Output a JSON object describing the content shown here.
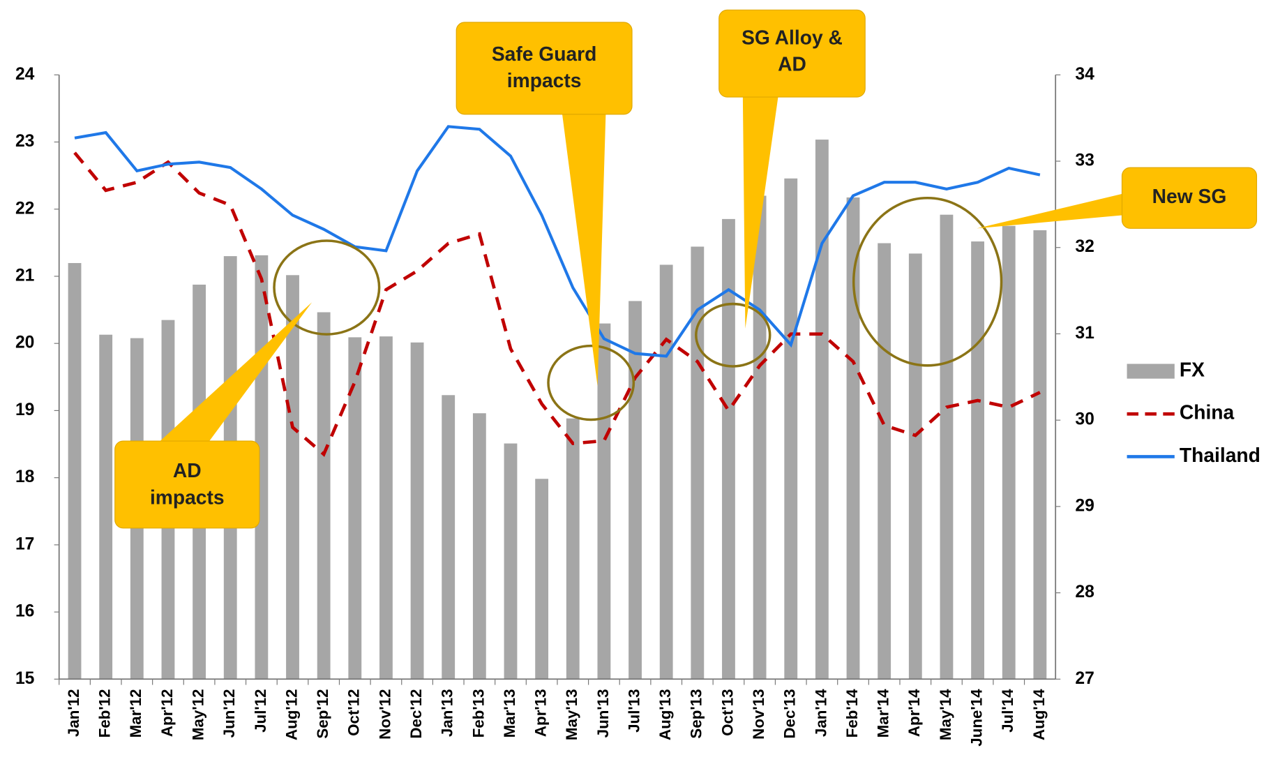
{
  "chart_data": {
    "type": "bar-line",
    "categories": [
      "Jan'12",
      "Feb'12",
      "Mar'12",
      "Apr'12",
      "May'12",
      "Jun'12",
      "Jul'12",
      "Aug'12",
      "Sep'12",
      "Oct'12",
      "Nov'12",
      "Dec'12",
      "Jan'13",
      "Feb'13",
      "Mar'13",
      "Apr'13",
      "May'13",
      "Jun'13",
      "Jul'13",
      "Aug'13",
      "Sep'13",
      "Oct'13",
      "Nov'13",
      "Dec'13",
      "Jan'14",
      "Feb'14",
      "Mar'14",
      "Apr'14",
      "May'14",
      "June'14",
      "Jul'14",
      "Aug'14"
    ],
    "series": [
      {
        "name": "FX",
        "type": "bar",
        "axis": "y2",
        "color": "#a6a6a6",
        "values": [
          31.82,
          30.99,
          30.95,
          31.16,
          31.57,
          31.9,
          31.91,
          31.68,
          31.25,
          30.96,
          30.97,
          30.9,
          30.29,
          30.08,
          29.73,
          29.32,
          30.02,
          31.12,
          31.38,
          31.8,
          32.01,
          32.33,
          32.6,
          32.8,
          33.25,
          32.58,
          32.05,
          31.93,
          32.38,
          32.07,
          32.25,
          32.2
        ]
      },
      {
        "name": "China",
        "type": "line",
        "dash": true,
        "color": "#c00000",
        "values": [
          22.84,
          22.28,
          22.4,
          22.7,
          22.24,
          22.06,
          20.96,
          18.75,
          18.35,
          19.43,
          20.8,
          21.08,
          21.49,
          21.63,
          19.92,
          19.1,
          18.51,
          18.55,
          19.49,
          20.06,
          19.73,
          19.0,
          19.67,
          20.14,
          20.14,
          19.73,
          18.78,
          18.63,
          19.05,
          19.15,
          19.05,
          19.27
        ]
      },
      {
        "name": "Thailand",
        "type": "line",
        "color": "#1f78e8",
        "values": [
          23.06,
          23.14,
          22.57,
          22.67,
          22.7,
          22.62,
          22.3,
          21.91,
          21.7,
          21.44,
          21.38,
          22.57,
          23.23,
          23.19,
          22.79,
          21.91,
          20.83,
          20.07,
          19.85,
          19.81,
          20.5,
          20.8,
          20.5,
          19.98,
          21.49,
          22.2,
          22.4,
          22.4,
          22.3,
          22.4,
          22.61,
          22.51
        ]
      }
    ],
    "ylim": [
      15,
      24
    ],
    "yticks": [
      15,
      16,
      17,
      18,
      19,
      20,
      21,
      22,
      23,
      24
    ],
    "y2lim": [
      27,
      34
    ],
    "y2ticks": [
      27,
      28,
      29,
      30,
      31,
      32,
      33,
      34
    ],
    "legend": "right",
    "annotations": [
      "AD impacts",
      "Safe Guard impacts",
      "SG Alloy & AD",
      "New SG"
    ]
  }
}
